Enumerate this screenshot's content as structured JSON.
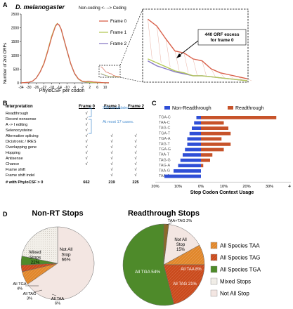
{
  "panelA": {
    "letter": "A",
    "species": "D. melanogaster",
    "direction": "Non-coding <-   --> Coding",
    "ylabel": "Number of 2nd ORFs",
    "xlabel": "PhyloCSF per codon",
    "yticks": [
      "0",
      "500",
      "1000",
      "1500",
      "2000",
      "2500"
    ],
    "xticks": [
      "-34",
      "-30",
      "-26",
      "-22",
      "-18",
      "-14",
      "-10",
      "-6",
      "-2",
      "2",
      "6",
      "10"
    ],
    "legend": [
      "Frame 0",
      "Frame 1",
      "Frame 2"
    ],
    "annotation": "440 ORF excess for frame 0",
    "colors": {
      "frame0": "#d9614b",
      "frame1": "#b5c95a",
      "frame2": "#8a7cc7"
    }
  },
  "panelB": {
    "letter": "B",
    "header": {
      "label": "Interpretation",
      "f0": "Frame 0",
      "f1": "Frame 1",
      "f2": "Frame 2"
    },
    "rows": [
      {
        "label": "Readthrough",
        "f0": "√",
        "f1": "",
        "f2": ""
      },
      {
        "label": "Recent nonsense",
        "f0": "√",
        "f1": "",
        "f2": ""
      },
      {
        "label": "A -> I editing",
        "f0": "√",
        "f1": "",
        "f2": ""
      },
      {
        "label": "Selenocysteine",
        "f0": "√",
        "f1": "",
        "f2": ""
      },
      {
        "label": "Alternative splicing",
        "f0": "√",
        "f1": "√",
        "f2": "√"
      },
      {
        "label": "Dicistronic / IRES",
        "f0": "√",
        "f1": "√",
        "f2": "√"
      },
      {
        "label": "Overlapping gene",
        "f0": "√",
        "f1": "√",
        "f2": "√"
      },
      {
        "label": "Hopping",
        "f0": "√",
        "f1": "√",
        "f2": "√"
      },
      {
        "label": "Antisense",
        "f0": "√",
        "f1": "√",
        "f2": "√"
      },
      {
        "label": "Chance",
        "f0": "√",
        "f1": "√",
        "f2": "√"
      },
      {
        "label": "Frame shift",
        "f0": "",
        "f1": "√",
        "f2": "√"
      },
      {
        "label": "Frame shift indel",
        "f0": "",
        "f1": "√",
        "f2": "√"
      }
    ],
    "total": {
      "label": "# with PhyloCSF > 0",
      "f0": "662",
      "f1": "219",
      "f2": "225"
    },
    "note1": "283 candidates.",
    "note2": "At most 17 cases."
  },
  "chart_data": [
    {
      "type": "line",
      "title": "D. melanogaster",
      "xlabel": "PhyloCSF per codon",
      "ylabel": "Number of 2nd ORFs",
      "ylim": [
        0,
        2500
      ],
      "xlim": [
        -34,
        12
      ],
      "x": [
        -34,
        -30,
        -28,
        -26,
        -24,
        -22,
        -20,
        -18,
        -16,
        -15,
        -14,
        -13,
        -12,
        -10,
        -8,
        -6,
        -4,
        -2,
        0,
        1,
        2,
        3,
        4,
        5,
        6,
        7,
        8,
        9,
        10,
        11,
        12
      ],
      "series": [
        {
          "name": "Frame 0",
          "values": [
            0,
            20,
            60,
            180,
            400,
            700,
            1150,
            1650,
            2050,
            2150,
            2100,
            1950,
            1700,
            1200,
            700,
            350,
            150,
            60,
            45,
            62,
            55,
            42,
            30,
            28,
            22,
            20,
            12,
            8,
            6,
            4,
            2
          ]
        },
        {
          "name": "Frame 1",
          "values": [
            0,
            20,
            60,
            180,
            410,
            720,
            1180,
            1700,
            2080,
            2160,
            2100,
            1940,
            1680,
            1180,
            690,
            340,
            140,
            50,
            30,
            22,
            18,
            14,
            10,
            8,
            5,
            5,
            4,
            3,
            2,
            1,
            0
          ]
        },
        {
          "name": "Frame 2",
          "values": [
            0,
            20,
            60,
            175,
            400,
            710,
            1160,
            1680,
            2060,
            2140,
            2090,
            1930,
            1670,
            1170,
            680,
            330,
            135,
            48,
            28,
            20,
            15,
            12,
            9,
            7,
            5,
            5,
            4,
            3,
            2,
            1,
            0
          ]
        }
      ]
    },
    {
      "type": "bar",
      "orientation": "horizontal",
      "xlabel": "Stop Codon Context Usage",
      "xticks": [
        "20%",
        "10%",
        "0%",
        "10%",
        "20%",
        "30%",
        "40%"
      ],
      "categories": [
        "TGA-C",
        "TAA-C",
        "TAG-C",
        "TGA-T",
        "TGA-A",
        "TAG-T",
        "TGA-G",
        "TAA-T",
        "TAG-G",
        "TAG-A",
        "TAA-G",
        "TAA-A"
      ],
      "series": [
        {
          "name": "Non-Readthrough",
          "values": [
            2,
            3,
            4,
            5,
            6,
            6,
            7,
            8,
            9,
            10,
            12,
            16
          ]
        },
        {
          "name": "Readthrough",
          "values": [
            33,
            10,
            12,
            13,
            9,
            13,
            10,
            5,
            4,
            1,
            0,
            0
          ]
        }
      ],
      "colors": {
        "nonrt": "#2f4fd6",
        "rt": "#c7532a"
      }
    },
    {
      "type": "pie",
      "title": "Non-RT Stops",
      "slices": [
        {
          "label": "Not All Stop",
          "value": 66
        },
        {
          "label": "All TAA",
          "value": 6
        },
        {
          "label": "All TAG",
          "value": 3
        },
        {
          "label": "All TGA",
          "value": 4
        },
        {
          "label": "Mixed Stops",
          "value": 22
        }
      ]
    },
    {
      "type": "pie",
      "title": "Readthrough Stops",
      "slices": [
        {
          "label": "TAA+TAG",
          "value": 2
        },
        {
          "label": "Not All Stop",
          "value": 15
        },
        {
          "label": "All TAA",
          "value": 8
        },
        {
          "label": "All TAG",
          "value": 21
        },
        {
          "label": "All TGA",
          "value": 54
        }
      ]
    }
  ],
  "panelC": {
    "letter": "C",
    "legend": [
      "Non-Readthrough",
      "Readthrough"
    ]
  },
  "panelD": {
    "letter": "D",
    "left_title": "Non-RT Stops",
    "right_title": "Readthrough Stops",
    "left_labels": {
      "not_all": "Not All\nStop\n66%",
      "mixed": "Mixed\nStops\n22%",
      "tga": "All TGA\n4%",
      "tag": "All TAG\n3%",
      "taa": "All TAA\n6%"
    },
    "right_labels": {
      "taatag": "TAA+TAG 2%",
      "not_all": "Not All\nStop\n15%",
      "taa": "All TAA 8%",
      "tag": "All TAG 21%",
      "tga": "All TGA 54%"
    },
    "legend": [
      "All Species TAA",
      "All Species TAG",
      "All Species TGA",
      "Mixed Stops",
      "Not All Stop"
    ],
    "colors": {
      "taa": "#e0862a",
      "tag": "#c94a1c",
      "tga": "#4e8a2a",
      "mixed": "#f2f0ec",
      "notall": "#f3e6e2"
    }
  }
}
